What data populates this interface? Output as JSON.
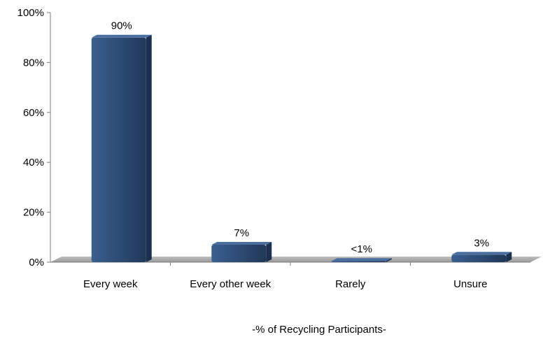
{
  "chart_data": {
    "type": "bar",
    "categories": [
      "Every week",
      "Every other week",
      "Rarely",
      "Unsure"
    ],
    "values": [
      90,
      7,
      0.5,
      3
    ],
    "data_labels": [
      "90%",
      "7%",
      "<1%",
      "3%"
    ],
    "xlabel": "-% of Recycling Participants-",
    "ylabel": "",
    "ylim": [
      0,
      100
    ],
    "y_ticks": [
      0,
      20,
      40,
      60,
      80,
      100
    ],
    "y_tick_labels": [
      "0%",
      "20%",
      "40%",
      "60%",
      "80%",
      "100%"
    ],
    "grid": false,
    "legend": "none",
    "bar_color": "#2c4a72",
    "floor_color": "#a6a6a6"
  }
}
